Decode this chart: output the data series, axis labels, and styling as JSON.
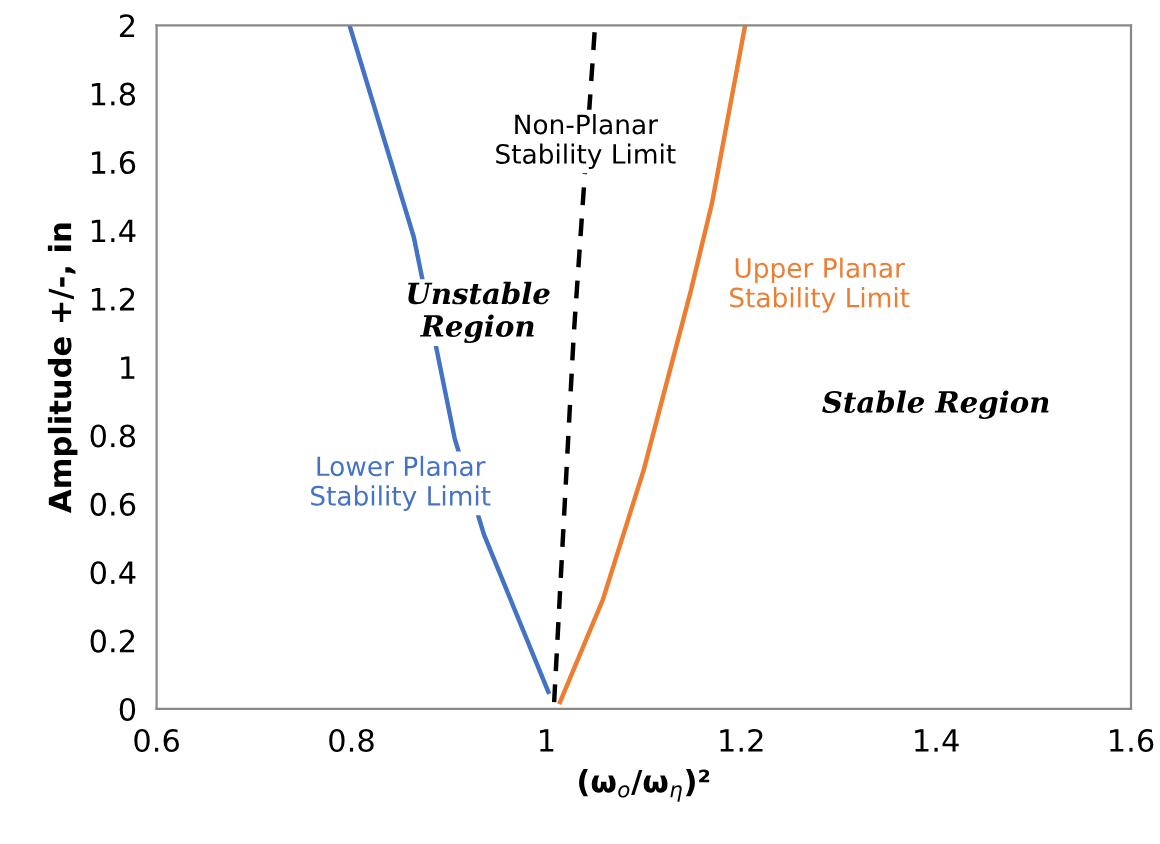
{
  "chart_data": {
    "type": "line",
    "xlabel": "(ω$_{o}$/ω$_{η}$)²",
    "ylabel": "Amplitude +/-, in",
    "xlim": [
      0.6,
      1.6
    ],
    "xticks": [
      0.6,
      0.8,
      1,
      1.2,
      1.4,
      1.6
    ],
    "ylim": [
      0,
      2
    ],
    "yticks": [
      0,
      0.2,
      0.4,
      0.6,
      0.8,
      1,
      1.2,
      1.4,
      1.6,
      1.8,
      2
    ],
    "grid": false,
    "legend": false,
    "marker": "none",
    "series": [
      {
        "name": "Lower Planar\nStability Limit",
        "color": "#4472c4",
        "line_style": "solid",
        "x": [
          1.002,
          0.936,
          0.906,
          0.864,
          0.798
        ],
        "values": [
          0.05,
          0.51,
          0.79,
          1.38,
          2
        ]
      },
      {
        "name": "Non-Planar\nStability Limit",
        "color": "#000000",
        "line_style": "dashed",
        "x": [
          1.008,
          1.028,
          1.05
        ],
        "values": [
          0.02,
          1.09,
          2
        ]
      },
      {
        "name": "Upper Planar\nStability Limit",
        "color": "#ed7d31",
        "line_style": "solid",
        "x": [
          1.014,
          1.058,
          1.1,
          1.148,
          1.17,
          1.204
        ],
        "values": [
          0.02,
          0.32,
          0.7,
          1.22,
          1.48,
          2
        ]
      }
    ],
    "annotations": [
      "Unstable\nRegion",
      "Stable Region"
    ]
  }
}
